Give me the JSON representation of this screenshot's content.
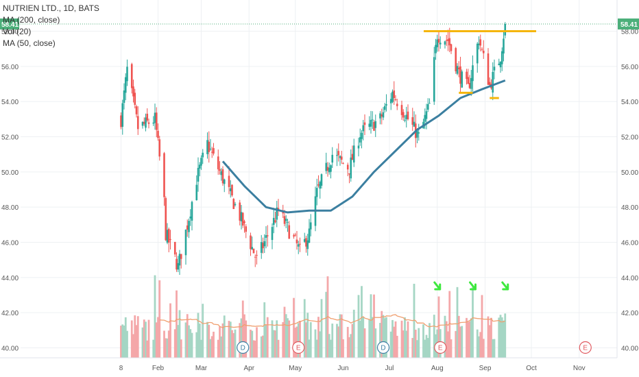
{
  "header": {
    "title": "NUTRIEN LTD., 1D, BATS"
  },
  "legend": {
    "ma200": "MA (200, close)",
    "vol": "Vol (20)",
    "ma50": "MA (50, close)"
  },
  "price_badges": {
    "left": "58.41",
    "right": "58.41"
  },
  "markers": {
    "dividend": "D",
    "earnings": "E"
  },
  "colors": {
    "up": "#26a69a",
    "down": "#ef5350",
    "up_volume": "#a5d6c4",
    "down_volume": "#f4a7a9",
    "ma50": "#3b7fa0",
    "volume_ma": "#f0a070",
    "resistance": "#f5b50a",
    "arrows": "#3ee83e",
    "badge": "#4caf7a",
    "earnings_marker": "#e0585e",
    "dividend_marker": "#3d7fa3"
  },
  "chart_data": {
    "type": "candlestick",
    "symbol": "NUTRIEN LTD.",
    "interval": "1D",
    "exchange": "BATS",
    "y_axis": {
      "ticks": [
        "58.00",
        "56.00",
        "54.00",
        "52.00",
        "50.00",
        "48.00",
        "46.00",
        "44.00",
        "42.00",
        "40.00"
      ],
      "ylim": [
        39.5,
        58.8
      ]
    },
    "x_axis": {
      "ticks": [
        "8",
        "Feb",
        "Mar",
        "Apr",
        "May",
        "Jun",
        "Jul",
        "Aug",
        "Sep",
        "Oct",
        "Nov"
      ]
    },
    "last_price": 58.41,
    "key_points": [
      {
        "date": "2018-01-08",
        "close": 53.0
      },
      {
        "date": "2018-01-12",
        "close": 55.8
      },
      {
        "date": "2018-01-19",
        "close": 52.5
      },
      {
        "date": "2018-01-30",
        "close": 53.0
      },
      {
        "date": "2018-02-02",
        "close": 50.8
      },
      {
        "date": "2018-02-05",
        "close": 48.3
      },
      {
        "date": "2018-02-06",
        "close": 46.5
      },
      {
        "date": "2018-02-14",
        "close": 44.6
      },
      {
        "date": "2018-02-20",
        "close": 47.0
      },
      {
        "date": "2018-02-26",
        "close": 49.6
      },
      {
        "date": "2018-03-05",
        "close": 51.6
      },
      {
        "date": "2018-03-12",
        "close": 50.2
      },
      {
        "date": "2018-03-26",
        "close": 47.5
      },
      {
        "date": "2018-04-06",
        "close": 45.0
      },
      {
        "date": "2018-04-20",
        "close": 47.8
      },
      {
        "date": "2018-05-04",
        "close": 45.5
      },
      {
        "date": "2018-05-10",
        "close": 46.5
      },
      {
        "date": "2018-05-15",
        "close": 48.8
      },
      {
        "date": "2018-05-25",
        "close": 51.0
      },
      {
        "date": "2018-06-05",
        "close": 50.2
      },
      {
        "date": "2018-06-12",
        "close": 52.2
      },
      {
        "date": "2018-06-25",
        "close": 53.0
      },
      {
        "date": "2018-07-03",
        "close": 54.5
      },
      {
        "date": "2018-07-13",
        "close": 53.0
      },
      {
        "date": "2018-07-20",
        "close": 52.0
      },
      {
        "date": "2018-07-27",
        "close": 53.8
      },
      {
        "date": "2018-08-01",
        "close": 57.8
      },
      {
        "date": "2018-08-08",
        "close": 57.5
      },
      {
        "date": "2018-08-15",
        "close": 55.6
      },
      {
        "date": "2018-08-21",
        "close": 54.7
      },
      {
        "date": "2018-08-28",
        "close": 57.6
      },
      {
        "date": "2018-09-04",
        "close": 54.9
      },
      {
        "date": "2018-09-11",
        "close": 56.6
      },
      {
        "date": "2018-09-14",
        "close": 58.41
      }
    ],
    "ma50": [
      {
        "date": "2018-03-15",
        "value": 50.6
      },
      {
        "date": "2018-03-29",
        "value": 49.2
      },
      {
        "date": "2018-04-12",
        "value": 48.0
      },
      {
        "date": "2018-04-26",
        "value": 47.7
      },
      {
        "date": "2018-05-10",
        "value": 47.8
      },
      {
        "date": "2018-05-24",
        "value": 47.8
      },
      {
        "date": "2018-06-07",
        "value": 48.6
      },
      {
        "date": "2018-06-21",
        "value": 50.0
      },
      {
        "date": "2018-07-05",
        "value": 51.2
      },
      {
        "date": "2018-07-19",
        "value": 52.4
      },
      {
        "date": "2018-08-02",
        "value": 53.2
      },
      {
        "date": "2018-08-16",
        "value": 54.2
      },
      {
        "date": "2018-08-30",
        "value": 54.7
      },
      {
        "date": "2018-09-14",
        "value": 55.2
      }
    ],
    "resistance_level": 58.0,
    "support_levels": [
      {
        "value": 54.5,
        "from": "2018-08-15",
        "to": "2018-08-24"
      },
      {
        "value": 54.2,
        "from": "2018-09-04",
        "to": "2018-09-10"
      }
    ],
    "events": [
      {
        "type": "D",
        "date": "2018-03-28"
      },
      {
        "type": "E",
        "date": "2018-05-03"
      },
      {
        "type": "D",
        "date": "2018-06-27"
      },
      {
        "type": "E",
        "date": "2018-08-03"
      },
      {
        "type": "E",
        "date": "2018-11-05"
      }
    ],
    "arrow_dates": [
      "2018-08-01",
      "2018-08-24",
      "2018-09-14"
    ]
  }
}
